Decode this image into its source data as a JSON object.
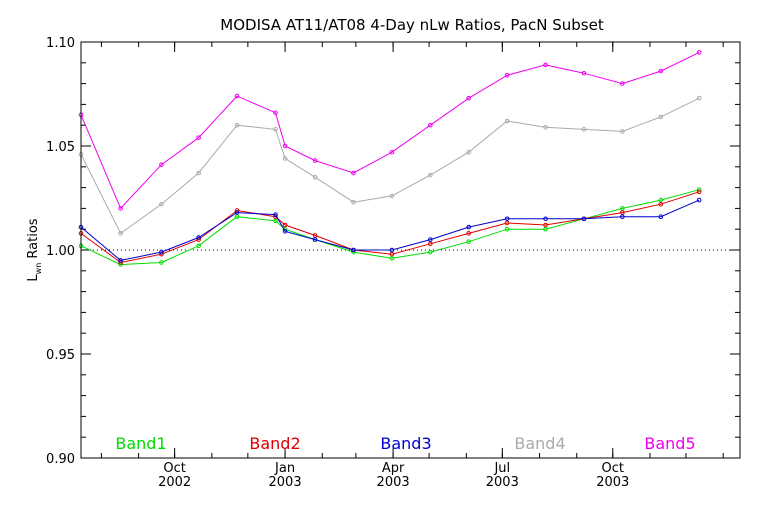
{
  "chart_data": {
    "type": "line",
    "title": "MODISA AT11/AT08 4-Day nLw Ratios, PacN Subset",
    "ylabel_main": "L",
    "ylabel_sub": "wn",
    "ylabel_rest": " Ratios",
    "xlim": [
      "2002-07-15",
      "2004-01-15"
    ],
    "ylim": [
      0.9,
      1.1
    ],
    "reference_line": 1.0,
    "yticks": [
      {
        "value": 0.9,
        "label": "0.90"
      },
      {
        "value": 0.95,
        "label": "0.95"
      },
      {
        "value": 1.0,
        "label": "1.00"
      },
      {
        "value": 1.05,
        "label": "1.05"
      },
      {
        "value": 1.1,
        "label": "1.10"
      }
    ],
    "xticks": [
      {
        "date": "2002-10-01",
        "month": "Oct",
        "year": "2002"
      },
      {
        "date": "2003-01-01",
        "month": "Jan",
        "year": "2003"
      },
      {
        "date": "2003-04-01",
        "month": "Apr",
        "year": "2003"
      },
      {
        "date": "2003-07-01",
        "month": "Jul",
        "year": "2003"
      },
      {
        "date": "2003-10-01",
        "month": "Oct",
        "year": "2003"
      }
    ],
    "x": [
      "2002-07-15",
      "2002-08-17",
      "2002-09-20",
      "2002-10-21",
      "2002-11-22",
      "2002-12-24",
      "2003-01-01",
      "2003-01-26",
      "2003-02-27",
      "2003-03-31",
      "2003-05-02",
      "2003-06-03",
      "2003-07-05",
      "2003-08-06",
      "2003-09-07",
      "2003-10-09",
      "2003-11-10",
      "2003-12-12"
    ],
    "series": [
      {
        "name": "Band1",
        "color": "#00dd00",
        "values": [
          1.002,
          0.993,
          0.994,
          1.002,
          1.016,
          1.014,
          1.01,
          1.005,
          0.999,
          0.996,
          0.999,
          1.004,
          1.01,
          1.01,
          1.015,
          1.02,
          1.024,
          1.029
        ]
      },
      {
        "name": "Band2",
        "color": "#dd0000",
        "values": [
          1.008,
          0.994,
          0.998,
          1.005,
          1.019,
          1.016,
          1.012,
          1.007,
          1.0,
          0.998,
          1.003,
          1.008,
          1.013,
          1.012,
          1.015,
          1.018,
          1.022,
          1.028
        ]
      },
      {
        "name": "Band3",
        "color": "#0000cc",
        "values": [
          1.011,
          0.995,
          0.999,
          1.006,
          1.018,
          1.017,
          1.009,
          1.005,
          1.0,
          1.0,
          1.005,
          1.011,
          1.015,
          1.015,
          1.015,
          1.016,
          1.016,
          1.024
        ]
      },
      {
        "name": "Band4",
        "color": "#aaaaaa",
        "values": [
          1.046,
          1.008,
          1.022,
          1.037,
          1.06,
          1.058,
          1.044,
          1.035,
          1.023,
          1.026,
          1.036,
          1.047,
          1.062,
          1.059,
          1.058,
          1.057,
          1.064,
          1.073
        ]
      },
      {
        "name": "Band5",
        "color": "#ee00ee",
        "values": [
          1.065,
          1.02,
          1.041,
          1.054,
          1.074,
          1.066,
          1.05,
          1.043,
          1.037,
          1.047,
          1.06,
          1.073,
          1.084,
          1.089,
          1.085,
          1.08,
          1.086,
          1.095
        ]
      }
    ]
  }
}
